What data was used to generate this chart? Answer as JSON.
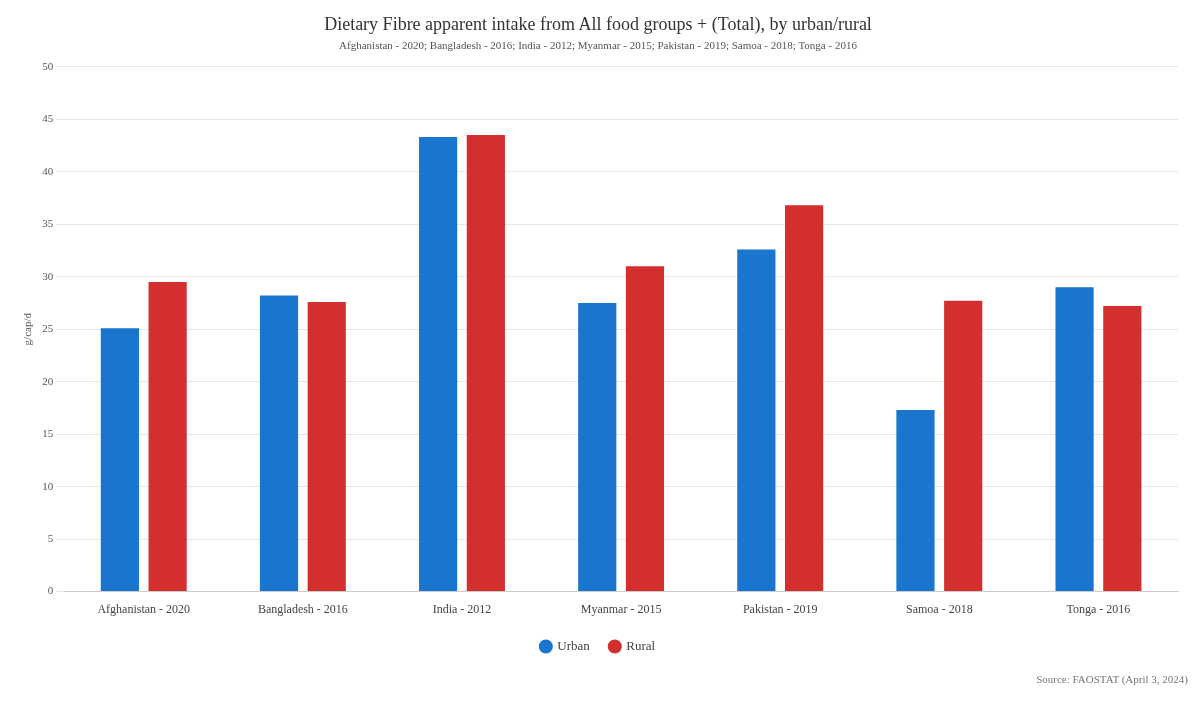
{
  "chart_data": {
    "type": "bar",
    "title": "Dietary Fibre apparent intake from All food groups + (Total), by urban/rural",
    "subtitle": "Afghanistan - 2020; Bangladesh - 2016; India - 2012; Myanmar - 2015; Pakistan - 2019; Samoa - 2018; Tonga - 2016",
    "ylabel": "g/cap/d",
    "categories": [
      "Afghanistan - 2020",
      "Bangladesh - 2016",
      "India - 2012",
      "Myanmar - 2015",
      "Pakistan - 2019",
      "Samoa - 2018",
      "Tonga - 2016"
    ],
    "series": [
      {
        "name": "Urban",
        "color": "#1a75cf",
        "values": [
          25.1,
          28.2,
          43.3,
          27.5,
          32.6,
          17.3,
          29.0
        ]
      },
      {
        "name": "Rural",
        "color": "#d32f2f",
        "values": [
          29.5,
          27.6,
          43.5,
          31.0,
          36.8,
          27.7,
          27.2
        ]
      }
    ],
    "ylim": [
      0,
      50
    ],
    "yticks": [
      0,
      5,
      10,
      15,
      20,
      25,
      30,
      35,
      40,
      45,
      50
    ],
    "grid": "y",
    "legend": "bottom",
    "annotations": [
      "Source: FAOSTAT (April 3, 2024)"
    ]
  }
}
